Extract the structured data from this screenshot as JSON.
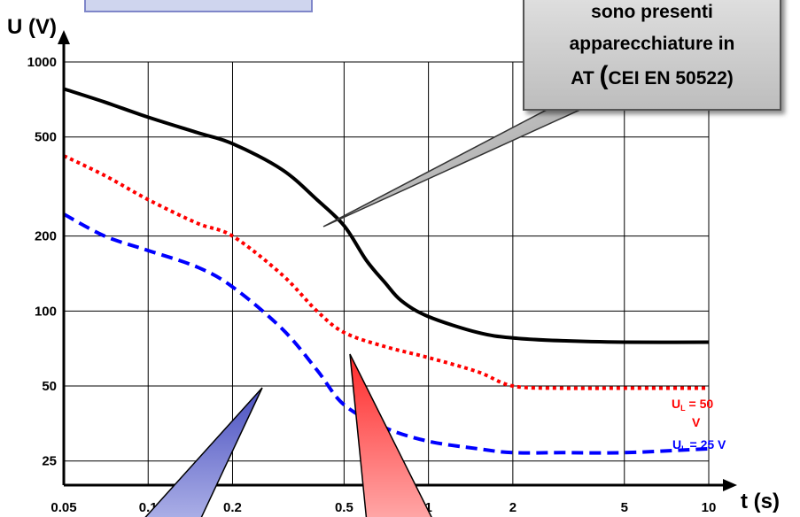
{
  "chart_data": {
    "type": "line",
    "xscale": "log",
    "yscale": "log",
    "xlabel": "t (s)",
    "ylabel": "U (V)",
    "xlim": [
      0.05,
      10
    ],
    "ylim": [
      20,
      1000
    ],
    "x_ticks": [
      0.05,
      0.1,
      0.2,
      0.5,
      1,
      2,
      5,
      10
    ],
    "x_tick_labels": [
      "0.05",
      "0.1",
      "0.2",
      "0.5",
      "1",
      "2",
      "5",
      "10"
    ],
    "y_ticks": [
      25,
      50,
      100,
      200,
      500,
      1000
    ],
    "y_tick_labels": [
      "25",
      "50",
      "100",
      "200",
      "500",
      "1000"
    ],
    "grid": true,
    "series": [
      {
        "color": "#000000",
        "style": "solid",
        "points": [
          [
            0.05,
            780
          ],
          [
            0.07,
            690
          ],
          [
            0.1,
            600
          ],
          [
            0.15,
            520
          ],
          [
            0.2,
            470
          ],
          [
            0.3,
            370
          ],
          [
            0.4,
            280
          ],
          [
            0.5,
            220
          ],
          [
            0.6,
            160
          ],
          [
            0.7,
            130
          ],
          [
            0.8,
            110
          ],
          [
            1,
            95
          ],
          [
            1.5,
            82
          ],
          [
            2,
            78
          ],
          [
            3,
            76
          ],
          [
            5,
            75
          ],
          [
            10,
            75
          ]
        ]
      },
      {
        "name": "U_L = 50 V",
        "color": "#ff0000",
        "style": "dotted",
        "points": [
          [
            0.05,
            420
          ],
          [
            0.07,
            350
          ],
          [
            0.1,
            280
          ],
          [
            0.15,
            225
          ],
          [
            0.2,
            200
          ],
          [
            0.3,
            140
          ],
          [
            0.4,
            100
          ],
          [
            0.5,
            82
          ],
          [
            0.7,
            72
          ],
          [
            1,
            65
          ],
          [
            1.5,
            57
          ],
          [
            2,
            50
          ],
          [
            3,
            49
          ],
          [
            5,
            49
          ],
          [
            10,
            49
          ]
        ]
      },
      {
        "name": "U_L = 25 V",
        "color": "#0000ff",
        "style": "dashed",
        "points": [
          [
            0.05,
            245
          ],
          [
            0.07,
            200
          ],
          [
            0.1,
            175
          ],
          [
            0.15,
            150
          ],
          [
            0.2,
            125
          ],
          [
            0.3,
            85
          ],
          [
            0.4,
            58
          ],
          [
            0.5,
            42
          ],
          [
            0.7,
            34
          ],
          [
            1,
            30
          ],
          [
            1.5,
            28
          ],
          [
            2,
            27
          ],
          [
            3,
            27
          ],
          [
            5,
            27
          ],
          [
            10,
            28
          ]
        ]
      }
    ],
    "annotations": {
      "callout_line1": "sono presenti",
      "callout_line2": "apparecchiature in",
      "callout_line3_prefix": "AT",
      "callout_line3_paren_open": "(",
      "callout_line3_rest": "CEI EN 50522)",
      "red_label_main": "U",
      "red_label_sub": "L",
      "red_label_rest": " = 50",
      "red_label_unit": "V",
      "blue_label_main": "U",
      "blue_label_sub": "L",
      "blue_label_rest": " = 25 V"
    },
    "colors": {
      "callout_fill": "#c8c8c8",
      "blue_pointer": "#5a5fc4",
      "red_pointer": "#ff5050"
    }
  }
}
